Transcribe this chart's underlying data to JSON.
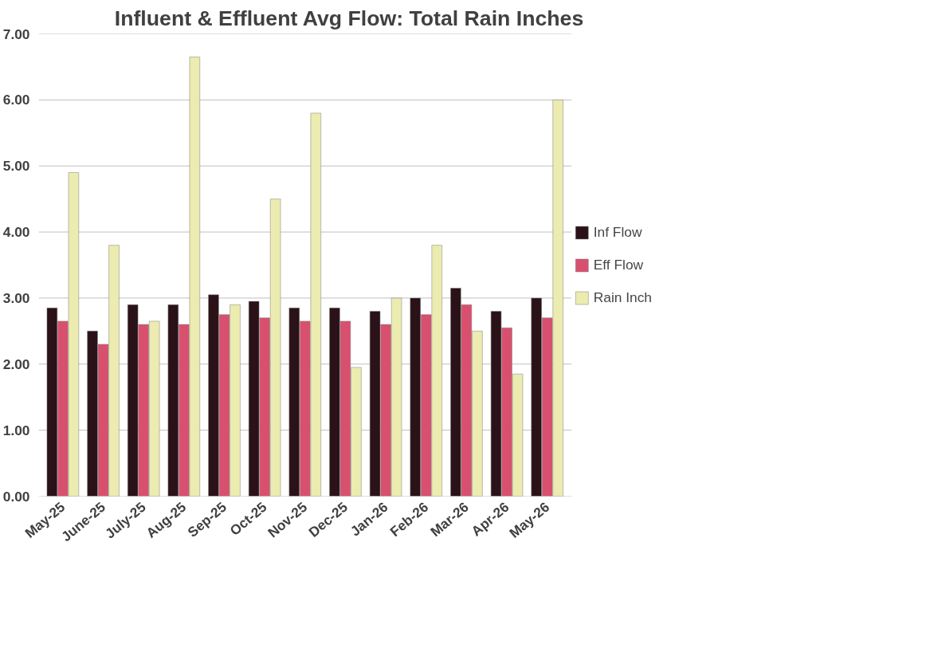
{
  "chart_data": {
    "type": "bar",
    "title": "Influent & Effluent Avg Flow: Total Rain Inches",
    "categories": [
      "May-25",
      "June-25",
      "July-25",
      "Aug-25",
      "Sep-25",
      "Oct-25",
      "Nov-25",
      "Dec-25",
      "Jan-26",
      "Feb-26",
      "Mar-26",
      "Apr-26",
      "May-26"
    ],
    "series": [
      {
        "name": "Inf Flow",
        "color": "#2a1218",
        "values": [
          2.85,
          2.5,
          2.9,
          2.9,
          3.05,
          2.95,
          2.85,
          2.85,
          2.8,
          3.0,
          3.15,
          2.8,
          3.0
        ]
      },
      {
        "name": "Eff Flow",
        "color": "#d9506f",
        "values": [
          2.65,
          2.3,
          2.6,
          2.6,
          2.75,
          2.7,
          2.65,
          2.65,
          2.6,
          2.75,
          2.9,
          2.55,
          2.7
        ]
      },
      {
        "name": "Rain Inch",
        "color": "#ecebb0",
        "values": [
          4.9,
          3.8,
          2.65,
          6.65,
          2.9,
          4.5,
          5.8,
          1.95,
          3.0,
          3.8,
          2.5,
          1.85,
          6.0
        ]
      }
    ],
    "ylim": [
      0,
      7
    ],
    "yticks": [
      {
        "value": 0,
        "label": "0.00"
      },
      {
        "value": 1,
        "label": "1.00"
      },
      {
        "value": 2,
        "label": "2.00"
      },
      {
        "value": 3,
        "label": "3.00"
      },
      {
        "value": 4,
        "label": "4.00"
      },
      {
        "value": 5,
        "label": "5.00"
      },
      {
        "value": 6,
        "label": "6.00"
      },
      {
        "value": 7,
        "label": "7.00"
      }
    ],
    "grid": "y",
    "legend": "right"
  }
}
